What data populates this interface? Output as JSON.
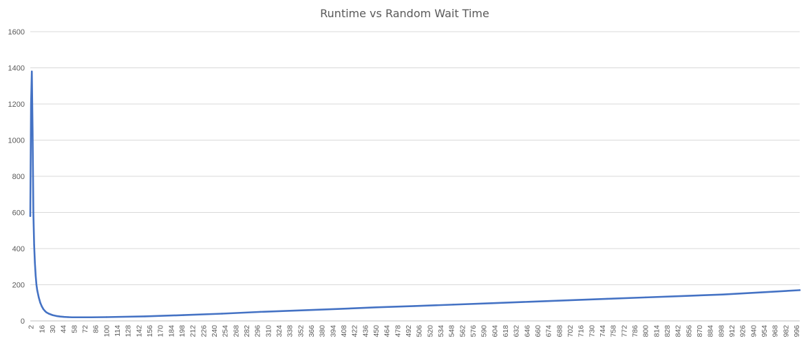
{
  "chart_data": {
    "type": "line",
    "title": "Runtime vs Random Wait Time",
    "xlabel": "",
    "ylabel": "",
    "ylim": [
      0,
      1600
    ],
    "y_ticks": [
      0,
      200,
      400,
      600,
      800,
      1000,
      1200,
      1400,
      1600
    ],
    "x_tick_start": 2,
    "x_tick_step": 14,
    "x_tick_end": 996,
    "x_first_category": 1,
    "x_last_category": 1000,
    "grid": true,
    "legend": "none",
    "series": [
      {
        "color": "#4472c4",
        "x": [
          1,
          2,
          3,
          4,
          5,
          6,
          7,
          8,
          9,
          10,
          12,
          14,
          16,
          18,
          20,
          22,
          25,
          30,
          35,
          40,
          45,
          50,
          55,
          60,
          70,
          80,
          100,
          150,
          200,
          250,
          300,
          350,
          400,
          450,
          500,
          550,
          600,
          650,
          700,
          750,
          800,
          850,
          900,
          950,
          1000
        ],
        "values": [
          580,
          1200,
          1380,
          1050,
          600,
          420,
          320,
          250,
          200,
          170,
          130,
          100,
          80,
          65,
          55,
          47,
          40,
          32,
          27,
          24,
          22,
          21,
          20,
          20,
          20,
          20,
          21,
          25,
          32,
          40,
          50,
          58,
          66,
          75,
          82,
          90,
          98,
          106,
          114,
          122,
          130,
          138,
          146,
          158,
          170
        ]
      }
    ]
  }
}
